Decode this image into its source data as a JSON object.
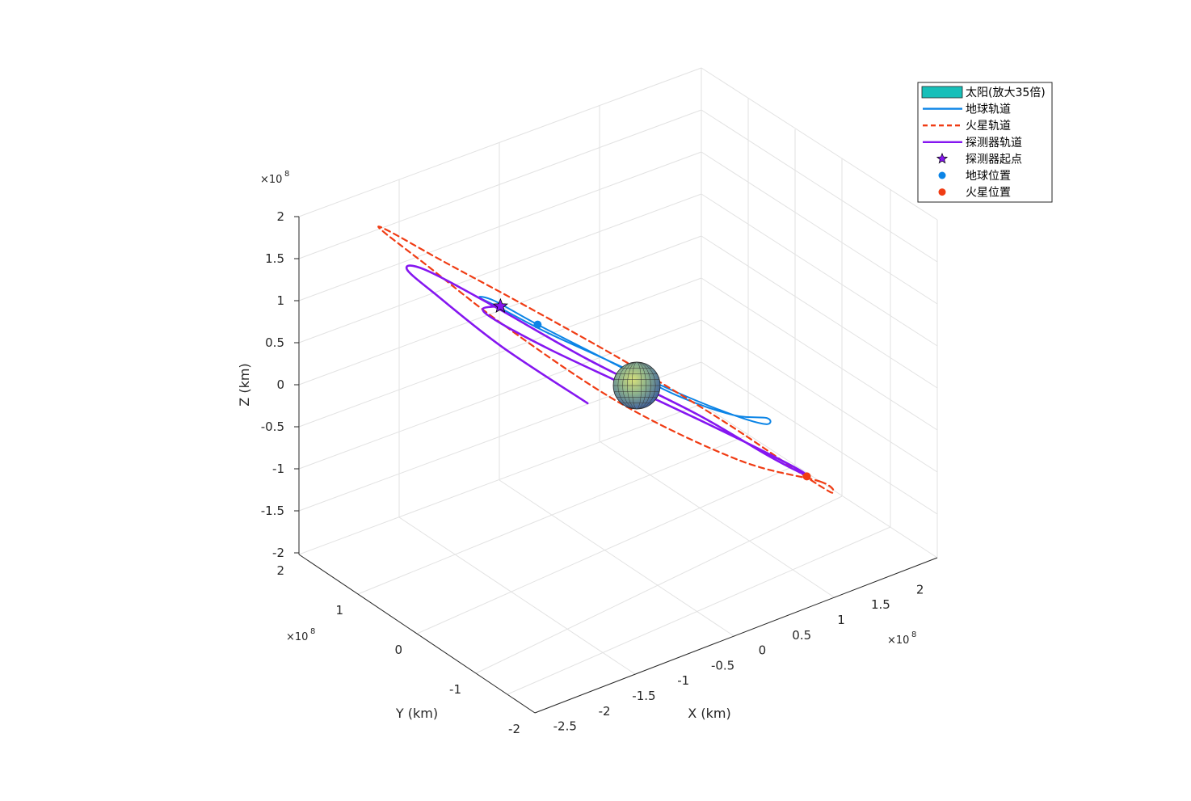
{
  "chart_data": {
    "type": "line3d",
    "axes": {
      "x": {
        "label": "X (km)",
        "multiplier": "×10^8",
        "ticks": [
          -2.5,
          -2,
          -1.5,
          -1,
          -0.5,
          0,
          0.5,
          1,
          1.5,
          2
        ],
        "tick_labels": [
          "-2.5",
          "-2",
          "-1.5",
          "-1",
          "-0.5",
          "0",
          "0.5",
          "1",
          "1.5",
          "2"
        ],
        "range": [
          -2.8,
          2.3
        ]
      },
      "y": {
        "label": "Y (km)",
        "multiplier": "×10^8",
        "ticks": [
          -2,
          -1,
          0,
          1,
          2
        ],
        "tick_labels": [
          "-2",
          "-1",
          "0",
          "1",
          "2"
        ],
        "range": [
          -2,
          2
        ]
      },
      "z": {
        "label": "Z (km)",
        "multiplier": "×10^8",
        "ticks": [
          -2,
          -1.5,
          -1,
          -0.5,
          0,
          0.5,
          1,
          1.5,
          2
        ],
        "tick_labels": [
          "-2",
          "-1.5",
          "-1",
          "-0.5",
          "0",
          "0.5",
          "1",
          "1.5",
          "2"
        ],
        "range": [
          -2,
          2
        ]
      },
      "grid": true
    },
    "series": [
      {
        "name": "太阳(放大35倍)",
        "kind": "sphere",
        "center": [
          0,
          0,
          0
        ],
        "color": "#17becf"
      },
      {
        "name": "地球轨道",
        "kind": "line",
        "style": "solid",
        "color": "#0b84e6",
        "x": [
          1.05,
          1.0,
          0.7,
          0.2,
          -0.4,
          -0.9,
          -1.25,
          -1.35,
          -1.15,
          -0.75,
          -0.2,
          0.4,
          0.85,
          1.05
        ],
        "y": [
          -0.55,
          -0.05,
          0.45,
          0.85,
          1.05,
          1.0,
          0.7,
          0.2,
          -0.3,
          -0.7,
          -0.95,
          -1.0,
          -0.85,
          -0.55
        ],
        "z": [
          -0.2,
          0.05,
          0.4,
          0.8,
          1.05,
          1.1,
          0.85,
          0.45,
          0.0,
          -0.35,
          -0.6,
          -0.65,
          -0.5,
          -0.2
        ]
      },
      {
        "name": "火星轨道",
        "kind": "line",
        "style": "dashed",
        "color": "#f03c14",
        "x": [
          1.6,
          1.3,
          0.6,
          -0.3,
          -1.1,
          -1.8,
          -2.15,
          -2.1,
          -1.7,
          -1.0,
          -0.1,
          0.8,
          1.4,
          1.6
        ],
        "y": [
          -0.6,
          0.3,
          1.2,
          1.75,
          1.85,
          1.5,
          0.8,
          0.0,
          -0.8,
          -1.45,
          -1.7,
          -1.55,
          -1.1,
          -0.6
        ],
        "z": [
          -0.75,
          -0.2,
          0.6,
          1.4,
          1.85,
          1.8,
          1.3,
          0.6,
          -0.15,
          -0.85,
          -1.3,
          -1.45,
          -1.2,
          -0.75
        ]
      },
      {
        "name": "探测器轨道",
        "kind": "line",
        "style": "solid",
        "color": "#8516f0",
        "x": [
          -0.8,
          -1.15,
          -1.3,
          -1.1,
          -0.6,
          0.0,
          0.6,
          1.1,
          1.45,
          1.45,
          1.1,
          0.3,
          -0.6,
          -1.4,
          -1.9,
          -2.0,
          -1.7,
          -1.1
        ],
        "y": [
          1.05,
          0.8,
          0.3,
          -0.25,
          -0.75,
          -1.05,
          -1.15,
          -1.0,
          -0.55,
          0.05,
          0.7,
          1.3,
          1.55,
          1.4,
          0.9,
          0.2,
          -0.4,
          -0.9
        ],
        "z": [
          1.1,
          0.8,
          0.35,
          -0.15,
          -0.6,
          -0.9,
          -1.05,
          -1.0,
          -0.7,
          -0.2,
          0.45,
          1.05,
          1.45,
          1.45,
          1.0,
          0.3,
          -0.45,
          -1.1
        ]
      },
      {
        "name": "探测器起点",
        "kind": "marker",
        "marker": "star",
        "color": "#8516f0",
        "x": [
          -0.8
        ],
        "y": [
          1.05
        ],
        "z": [
          1.1
        ]
      },
      {
        "name": "地球位置",
        "kind": "marker",
        "marker": "dot",
        "color": "#0b84e6",
        "x": [
          -0.4
        ],
        "y": [
          1.05
        ],
        "z": [
          1.05
        ]
      },
      {
        "name": "火星位置",
        "kind": "marker",
        "marker": "dot",
        "color": "#f03c14",
        "x": [
          1.45
        ],
        "y": [
          -0.6
        ],
        "z": [
          -0.75
        ]
      }
    ],
    "legend": {
      "position": "top-right",
      "entries": [
        "太阳(放大35倍)",
        "地球轨道",
        "火星轨道",
        "探测器轨道",
        "探测器起点",
        "地球位置",
        "火星位置"
      ]
    }
  }
}
